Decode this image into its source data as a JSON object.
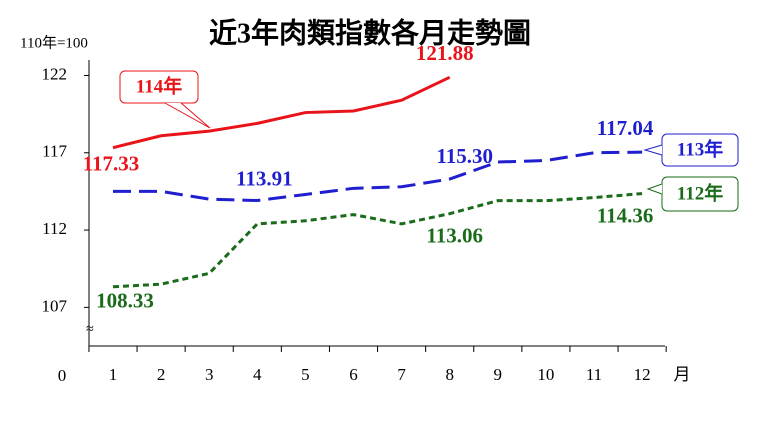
{
  "chart_data": {
    "type": "line",
    "title": "近3年肉類指數各月走勢圖",
    "y_unit": "110年=100",
    "x_unit": "月",
    "origin_label": "0",
    "axis_break": "≈",
    "categories": [
      "1",
      "2",
      "3",
      "4",
      "5",
      "6",
      "7",
      "8",
      "9",
      "10",
      "11",
      "12"
    ],
    "ylim": [
      104.5,
      123
    ],
    "yticks": [
      107,
      112,
      117,
      122
    ],
    "series": [
      {
        "name": "114年",
        "color": "#e8141a",
        "dash": "solid",
        "values": [
          117.33,
          118.1,
          118.4,
          118.9,
          119.6,
          119.7,
          120.4,
          121.88,
          null,
          null,
          null,
          null
        ],
        "value_labels": [
          "117.33",
          null,
          null,
          null,
          null,
          null,
          null,
          "121.88",
          null,
          null,
          null,
          null
        ]
      },
      {
        "name": "113年",
        "color": "#1f1fd0",
        "dash": "long",
        "values": [
          114.5,
          114.5,
          114.0,
          113.91,
          114.3,
          114.7,
          114.8,
          115.3,
          116.4,
          116.5,
          117.0,
          117.04
        ],
        "value_labels": [
          null,
          null,
          null,
          "113.91",
          null,
          null,
          null,
          "115.30",
          null,
          null,
          null,
          "117.04"
        ]
      },
      {
        "name": "112年",
        "color": "#1a6b1a",
        "dash": "short",
        "values": [
          108.33,
          108.5,
          109.2,
          112.4,
          112.6,
          113.0,
          112.4,
          113.06,
          113.9,
          113.9,
          114.1,
          114.36
        ],
        "value_labels": [
          "108.33",
          null,
          null,
          null,
          null,
          null,
          null,
          "113.06",
          null,
          null,
          null,
          "114.36"
        ]
      }
    ]
  }
}
